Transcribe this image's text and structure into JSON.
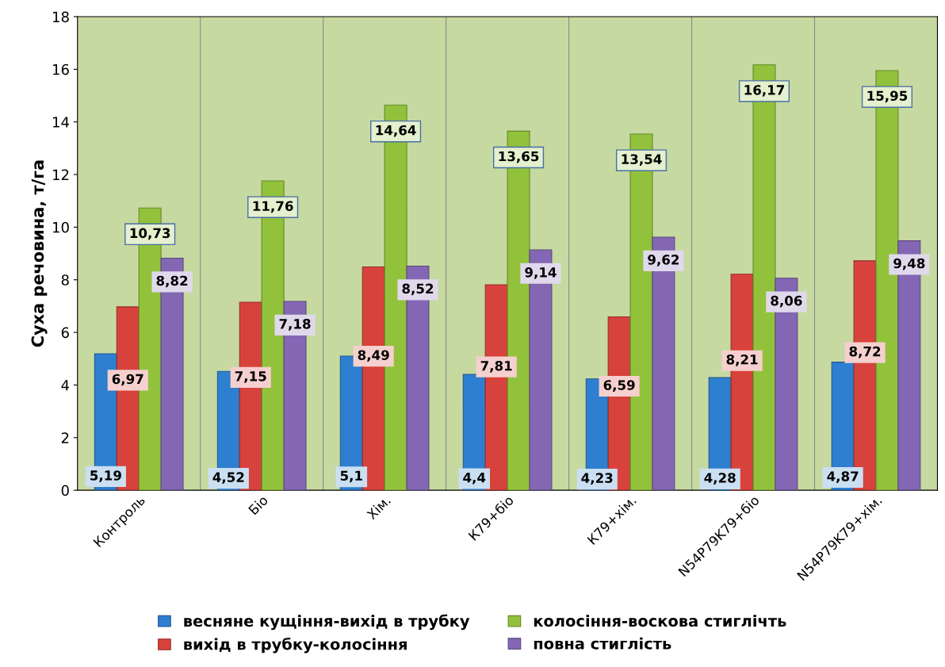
{
  "chart_data": {
    "type": "bar",
    "ylabel": "Суха речовина, т/га",
    "categories": [
      "Контроль",
      "Біо",
      "Хім.",
      "К79+біо",
      "К79+хім.",
      "N54P79K79+біо",
      "N54P79K79+хім."
    ],
    "series": [
      {
        "name": "весняне кущіння-вихід в трубку",
        "color": "#2e7fd0",
        "values": [
          5.19,
          4.52,
          5.1,
          4.4,
          4.23,
          4.28,
          4.87
        ],
        "value_labels": [
          "5,19",
          "4,52",
          "5,1",
          "4,4",
          "4,23",
          "4,28",
          "4,87"
        ]
      },
      {
        "name": "вихід в трубку-колосіння",
        "color": "#d8423c",
        "values": [
          6.97,
          7.15,
          8.49,
          7.81,
          6.59,
          8.21,
          8.72
        ],
        "value_labels": [
          "6,97",
          "7,15",
          "8,49",
          "7,81",
          "6,59",
          "8,21",
          "8,72"
        ]
      },
      {
        "name": "колосіння-воскова стиглічть",
        "color": "#92c23c",
        "values": [
          10.73,
          11.76,
          14.64,
          13.65,
          13.54,
          16.17,
          15.95
        ],
        "value_labels": [
          "10,73",
          "11,76",
          "14,64",
          "13,65",
          "13,54",
          "16,17",
          "15,95"
        ]
      },
      {
        "name": "повна стиглість",
        "color": "#8467b4",
        "values": [
          8.82,
          7.18,
          8.52,
          9.14,
          9.62,
          8.06,
          9.48
        ],
        "value_labels": [
          "8,82",
          "7,18",
          "8,52",
          "9,14",
          "9,62",
          "8,06",
          "9,48"
        ]
      }
    ],
    "ylim": [
      0,
      18
    ],
    "yticks": [
      0,
      2,
      4,
      6,
      8,
      10,
      12,
      14,
      16,
      18
    ],
    "grid": "x",
    "legend": "bottom"
  }
}
